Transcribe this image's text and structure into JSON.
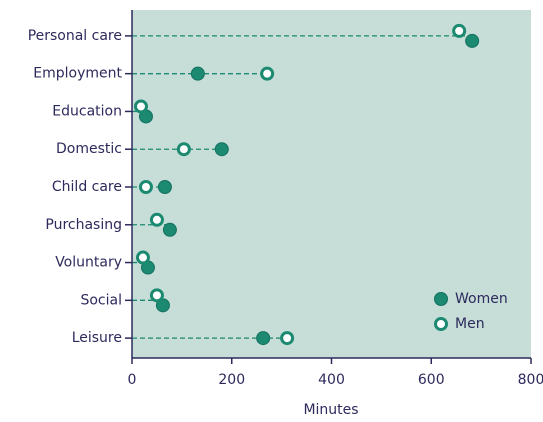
{
  "chart_data": {
    "type": "dot",
    "x_label": "Minutes",
    "categories": [
      "Personal care",
      "Employment",
      "Education",
      "Domestic",
      "Child care",
      "Purchasing",
      "Voluntary",
      "Social",
      "Leisure"
    ],
    "series": [
      {
        "name": "Women",
        "color": "#1b8a70",
        "values": [
          682,
          132,
          28,
          180,
          66,
          76,
          32,
          62,
          263
        ]
      },
      {
        "name": "Men",
        "color": "#1b8a70",
        "values": [
          656,
          271,
          18,
          104,
          28,
          50,
          22,
          50,
          311
        ]
      }
    ],
    "xlim": [
      0,
      800
    ],
    "xticks": [
      0,
      200,
      400,
      600,
      800
    ],
    "legend": "lower right",
    "background": "#c6ddd8"
  }
}
